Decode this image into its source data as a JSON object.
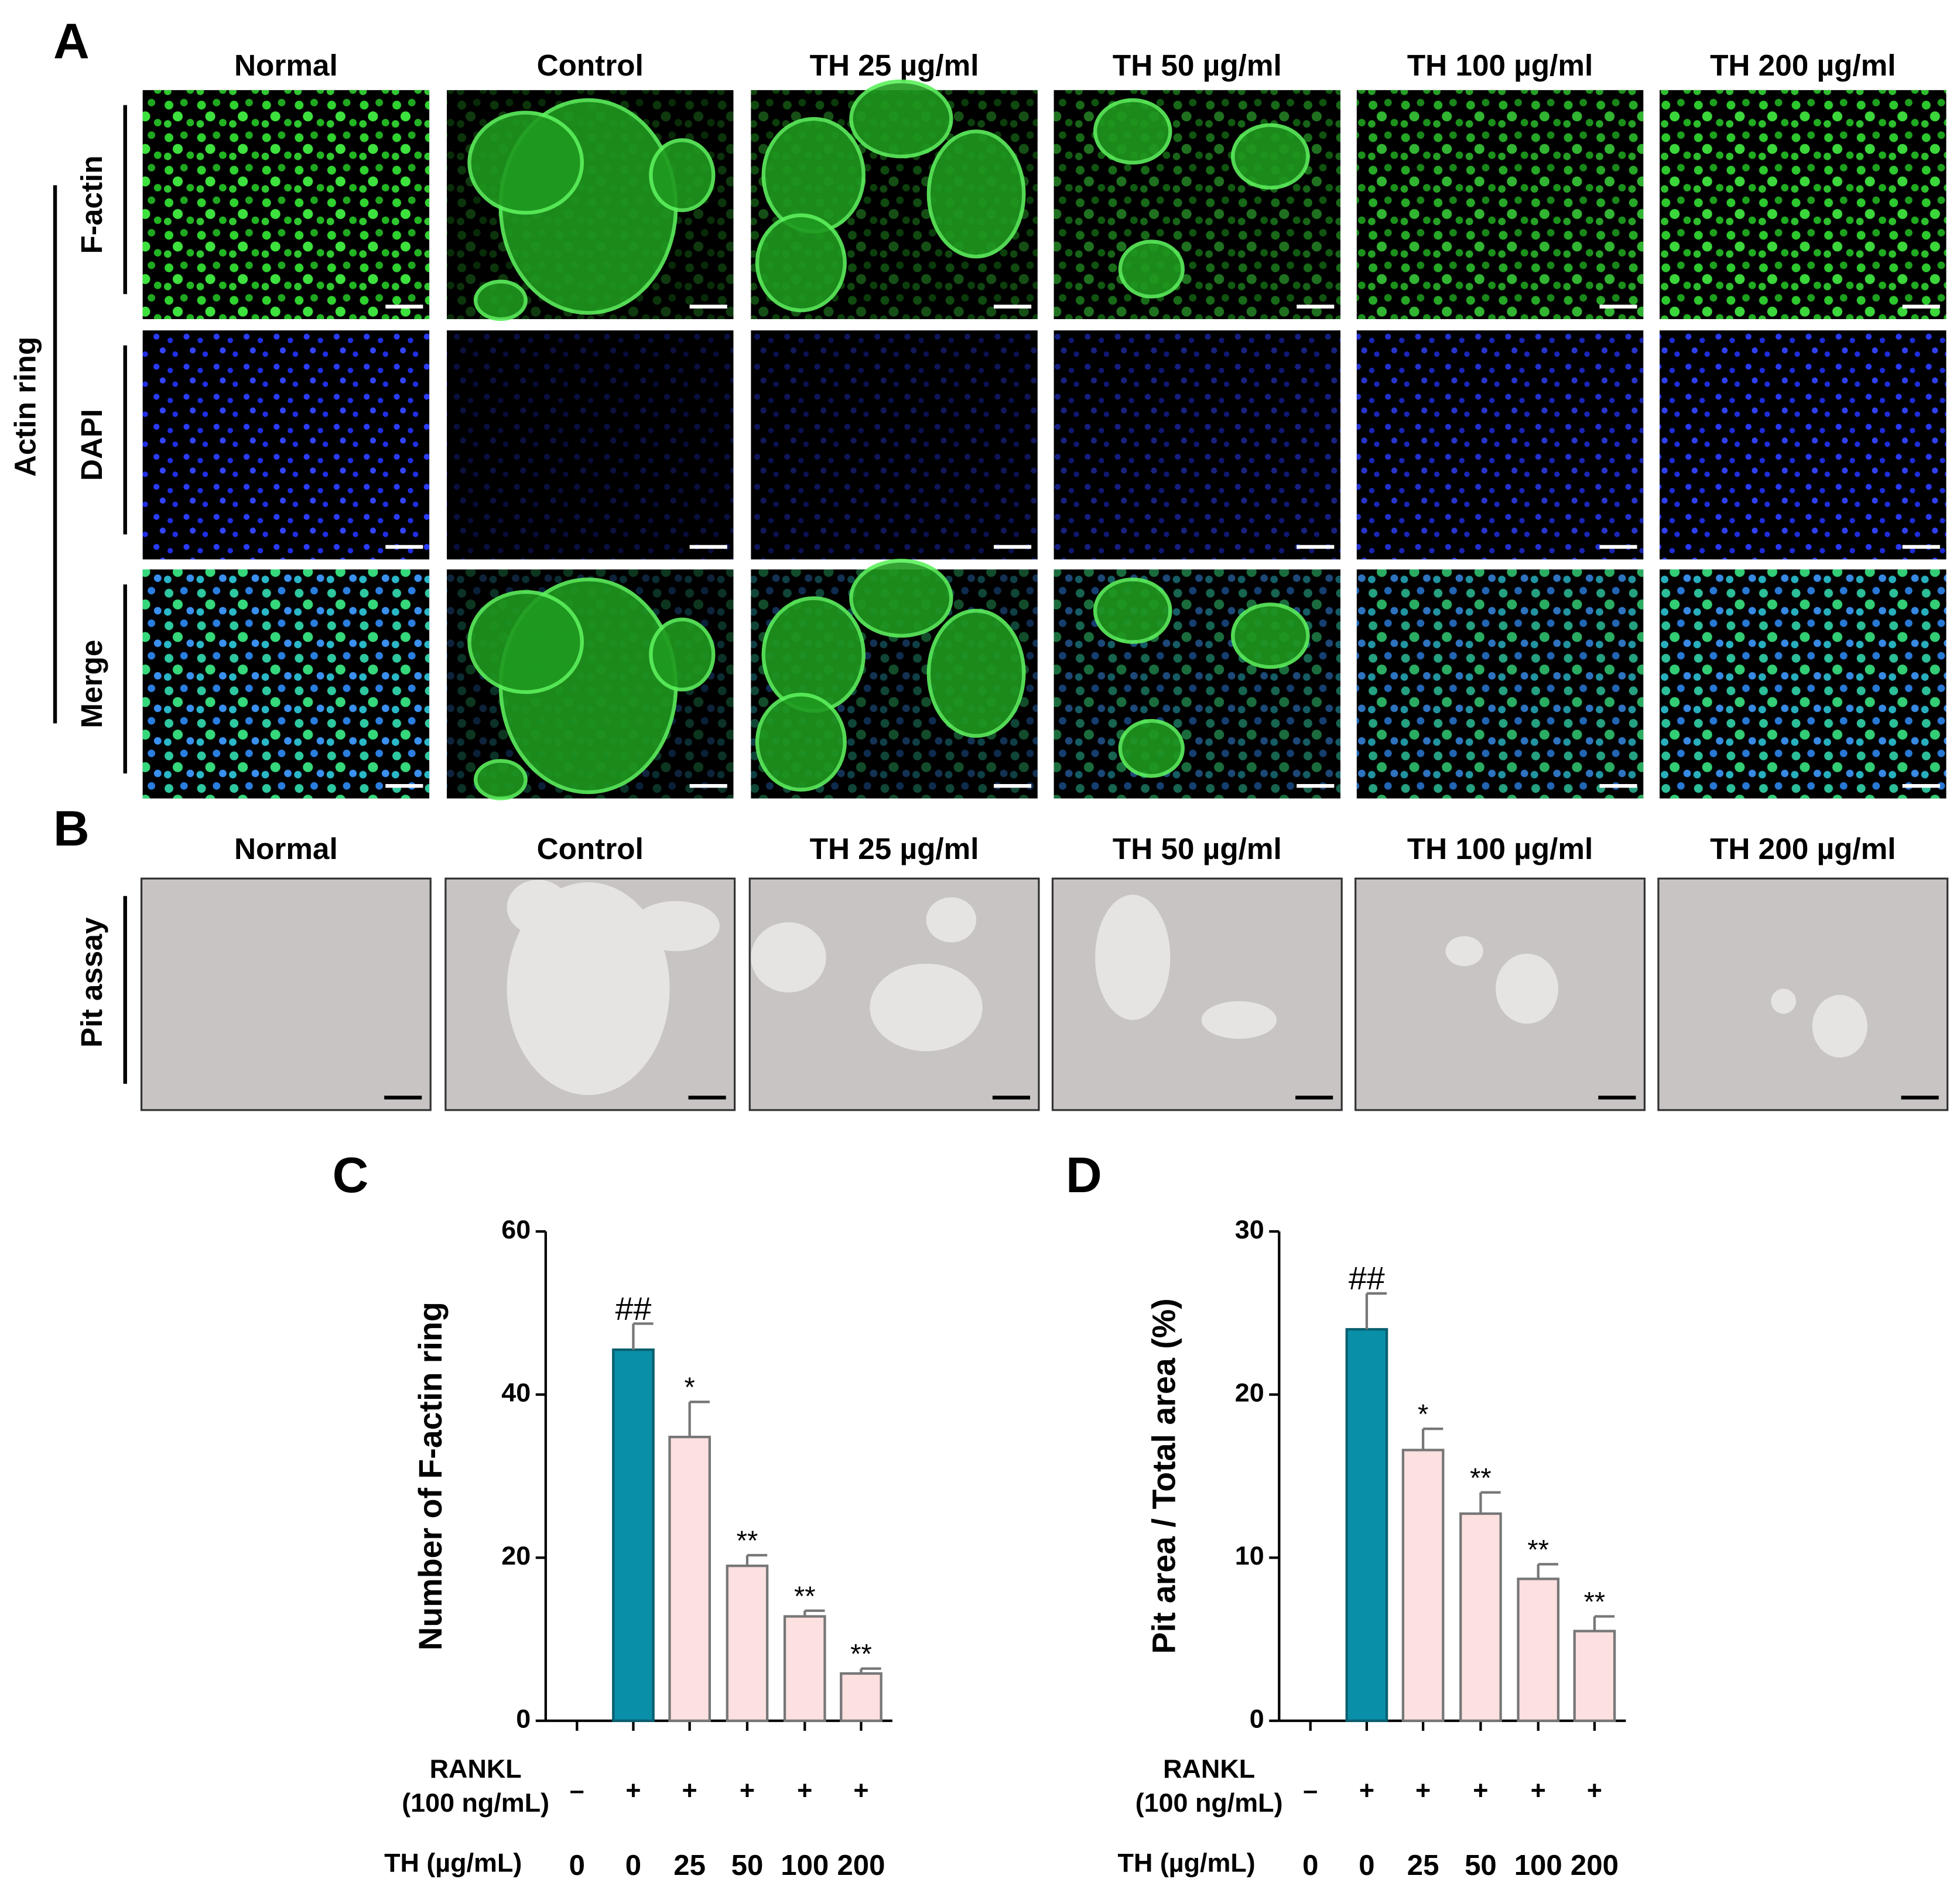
{
  "panel_a": {
    "label": "A",
    "columns": [
      "Normal",
      "Control",
      "TH 25 µg/ml",
      "TH 50 µg/ml",
      "TH 100 µg/ml",
      "TH 200 µg/ml"
    ],
    "group_label": "Actin ring",
    "rows": [
      "F-actin",
      "DAPI",
      "Merge"
    ]
  },
  "panel_b": {
    "label": "B",
    "columns": [
      "Normal",
      "Control",
      "TH 25 µg/ml",
      "TH 50 µg/ml",
      "TH 100 µg/ml",
      "TH 200 µg/ml"
    ],
    "rows": [
      "Pit assay"
    ]
  },
  "chart_data": [
    {
      "type": "bar",
      "panel_label": "C",
      "y_label": "Number of F-actin ring",
      "categories": [
        "0",
        "0",
        "25",
        "50",
        "100",
        "200"
      ],
      "rankl": [
        "–",
        "+",
        "+",
        "+",
        "+",
        "+"
      ],
      "rankl_label": [
        "RANKL",
        "(100 ng/mL)"
      ],
      "th_label": "TH (µg/mL)",
      "values": [
        0,
        45.5,
        34.8,
        19,
        12.8,
        5.8
      ],
      "errors": [
        null,
        3.2,
        4.3,
        1.3,
        0.7,
        0.6
      ],
      "annotations": [
        null,
        "##",
        "*",
        "**",
        "**",
        "**"
      ],
      "colors": [
        "#fde0e0",
        "#0a8fa8",
        "#fde0e0",
        "#fde0e0",
        "#fde0e0",
        "#fde0e0"
      ],
      "ylim": [
        0,
        60
      ],
      "yticks": [
        0,
        20,
        40,
        60
      ]
    },
    {
      "type": "bar",
      "panel_label": "D",
      "y_label": "Pit area / Total area (%)",
      "categories": [
        "0",
        "0",
        "25",
        "50",
        "100",
        "200"
      ],
      "rankl": [
        "–",
        "+",
        "+",
        "+",
        "+",
        "+"
      ],
      "rankl_label": [
        "RANKL",
        "(100 ng/mL)"
      ],
      "th_label": "TH (µg/mL)",
      "values": [
        0,
        24,
        16.6,
        12.7,
        8.7,
        5.5
      ],
      "errors": [
        null,
        2.2,
        1.3,
        1.3,
        0.9,
        0.9
      ],
      "annotations": [
        null,
        "##",
        "*",
        "**",
        "**",
        "**"
      ],
      "colors": [
        "#fde0e0",
        "#0a8fa8",
        "#fde0e0",
        "#fde0e0",
        "#fde0e0",
        "#fde0e0"
      ],
      "ylim": [
        0,
        30
      ],
      "yticks": [
        0,
        10,
        20,
        30
      ]
    }
  ]
}
